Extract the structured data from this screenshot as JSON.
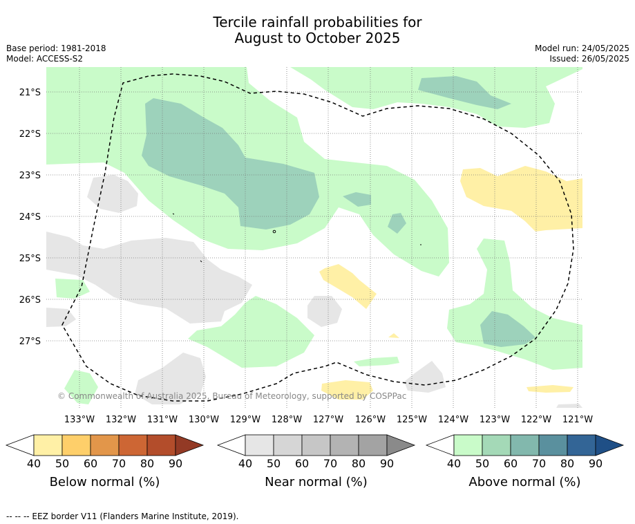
{
  "title_line1": "Tercile rainfall probabilities for",
  "title_line2": "August to October 2025",
  "base_period": "Base period: 1981-2018",
  "model": "Model: ACCESS-S2",
  "model_run": "Model run: 24/05/2025",
  "issued": "Issued: 26/05/2025",
  "copyright": "© Commonwealth of Australia 2025, Bureau of Meteorology, supported by COSPPac",
  "footnote": "--  --  -- EEZ border V11 (Flanders Marine Institute, 2019).",
  "map": {
    "lat_labels": [
      "21°S",
      "22°S",
      "23°S",
      "24°S",
      "25°S",
      "26°S",
      "27°S"
    ],
    "lon_labels": [
      "133°W",
      "132°W",
      "131°W",
      "130°W",
      "129°W",
      "128°W",
      "127°W",
      "126°W",
      "125°W",
      "124°W",
      "123°W",
      "122°W",
      "121°W"
    ]
  },
  "colorbars": [
    {
      "title": "Below normal (%)",
      "ticks": [
        "40",
        "50",
        "60",
        "70",
        "80",
        "90"
      ],
      "colors": [
        "#fff0a6",
        "#fecf6a",
        "#e2964a",
        "#cd6634",
        "#b34d2b",
        "#933a25"
      ]
    },
    {
      "title": "Near normal (%)",
      "ticks": [
        "40",
        "50",
        "60",
        "70",
        "80",
        "90"
      ],
      "colors": [
        "#e6e6e6",
        "#d6d6d6",
        "#c6c6c6",
        "#b3b3b3",
        "#a3a3a3",
        "#8a8a8a"
      ]
    },
    {
      "title": "Above normal (%)",
      "ticks": [
        "40",
        "50",
        "60",
        "70",
        "80",
        "90"
      ],
      "colors": [
        "#c9fbc9",
        "#a4d9b7",
        "#82b8ad",
        "#5a909e",
        "#336596",
        "#1f4f86"
      ]
    }
  ],
  "colors": {
    "above_40": "#c9fbc9",
    "above_50": "#9dd2bb",
    "below_40": "#fff0a6",
    "near_40": "#e6e6e6"
  }
}
